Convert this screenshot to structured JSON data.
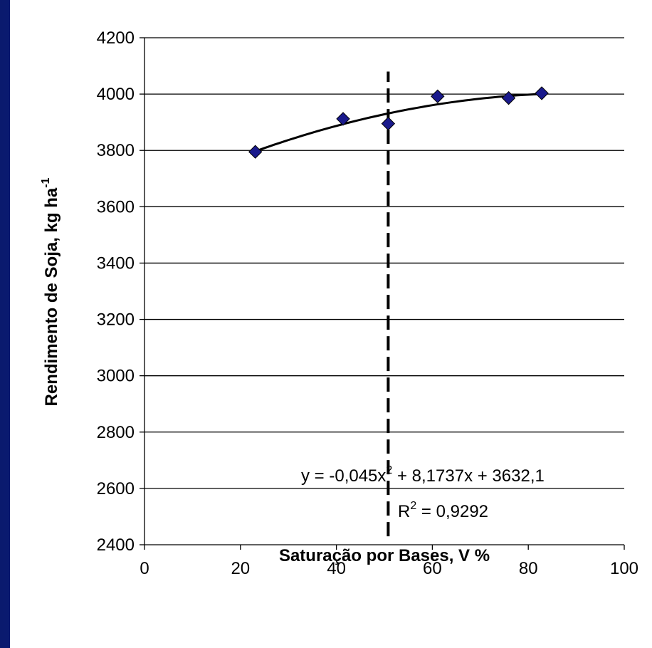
{
  "chart_data": {
    "type": "scatter",
    "title": "",
    "xlabel": "Saturação por Bases, V %",
    "ylabel": {
      "main": "Rendimento de Soja, kg ha",
      "sup": "-1"
    },
    "xlim": [
      0,
      100
    ],
    "ylim": [
      2400,
      4200
    ],
    "xticks": [
      "0",
      "20",
      "40",
      "60",
      "80",
      "100"
    ],
    "yticks": [
      "2400",
      "2600",
      "2800",
      "3000",
      "3200",
      "3400",
      "3600",
      "3800",
      "4000",
      "4200"
    ],
    "grid": "horizontal",
    "points": [
      {
        "x": 23.1,
        "y": 3795
      },
      {
        "x": 41.4,
        "y": 3912
      },
      {
        "x": 50.8,
        "y": 3895
      },
      {
        "x": 61.1,
        "y": 3992
      },
      {
        "x": 75.9,
        "y": 3986
      },
      {
        "x": 82.8,
        "y": 4003
      }
    ],
    "marker_color": "#1a1a8c",
    "trendline": {
      "type": "polynomial",
      "a": -0.045,
      "b": 8.1737,
      "c": 3632.1,
      "x_from": 23.1,
      "x_to": 82.8
    },
    "reference_line": {
      "x": 50.8,
      "y_from": 2430,
      "y_to": 4080,
      "style": "dashed"
    },
    "equation": {
      "part1": "y = -0,045x",
      "sup": "2",
      "part2": " + 8,1737x + 3632,1"
    },
    "r_squared": {
      "prefix": "R",
      "sup": "2",
      "value": " = 0,9292"
    }
  }
}
